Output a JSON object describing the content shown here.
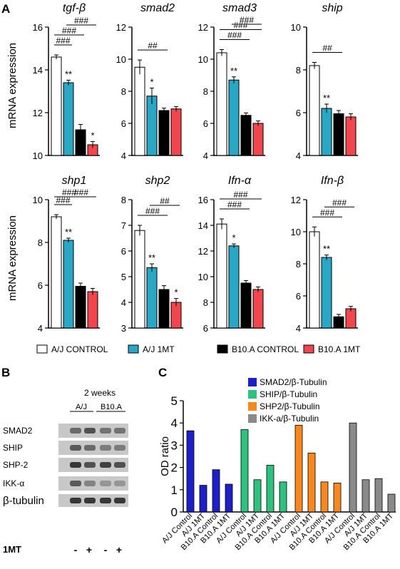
{
  "panels": {
    "A": "A",
    "B": "B",
    "C": "C"
  },
  "panel_a": {
    "ylabel": "mRNA expression",
    "legend": [
      {
        "label": "A/J CONTROL",
        "color": "#ffffff"
      },
      {
        "label": "A/J 1MT",
        "color": "#2aa7c4"
      },
      {
        "label": "B10.A CONTROL",
        "color": "#000000"
      },
      {
        "label": "B10.A 1MT",
        "color": "#f2464e"
      }
    ]
  },
  "panel_b": {
    "time_label": "2 weeks",
    "group_labels": [
      "A/J",
      "B10.A"
    ],
    "row_labels": [
      "SMAD2",
      "SHIP",
      "SHP-2",
      "IKK-α",
      "β-tubulin"
    ],
    "treatment_label": "1MT",
    "treatment_signs": [
      "-",
      "+",
      "-",
      "+"
    ]
  },
  "chart_data": [
    {
      "type": "bar",
      "title": "tgf-β",
      "ylim": [
        10,
        16
      ],
      "yticks": [
        10,
        12,
        14,
        16
      ],
      "categories": [
        "A/J CONTROL",
        "A/J 1MT",
        "B10.A CONTROL",
        "B10.A 1MT"
      ],
      "values": [
        14.6,
        13.4,
        11.2,
        10.5
      ],
      "errors": [
        0.1,
        0.12,
        0.25,
        0.15
      ],
      "bar_labels": [
        "",
        "**",
        "",
        "*"
      ],
      "brackets": [
        {
          "from": 0,
          "to": 1,
          "label": "###"
        },
        {
          "from": 0,
          "to": 2,
          "label": "###"
        },
        {
          "from": 1,
          "to": 3,
          "label": "###"
        }
      ]
    },
    {
      "type": "bar",
      "title": "smad2",
      "ylim": [
        4,
        12
      ],
      "yticks": [
        4,
        6,
        8,
        10,
        12
      ],
      "categories": [
        "A/J CONTROL",
        "A/J 1MT",
        "B10.A CONTROL",
        "B10.A 1MT"
      ],
      "values": [
        9.5,
        7.7,
        6.8,
        6.9
      ],
      "errors": [
        0.45,
        0.5,
        0.15,
        0.15
      ],
      "bar_labels": [
        "",
        "*",
        "",
        ""
      ],
      "brackets": [
        {
          "from": 0,
          "to": 2,
          "label": "##"
        }
      ]
    },
    {
      "type": "bar",
      "title": "smad3",
      "ylim": [
        4,
        12
      ],
      "yticks": [
        4,
        6,
        8,
        10,
        12
      ],
      "categories": [
        "A/J CONTROL",
        "A/J 1MT",
        "B10.A CONTROL",
        "B10.A 1MT"
      ],
      "values": [
        10.4,
        8.7,
        6.5,
        6.0
      ],
      "errors": [
        0.2,
        0.2,
        0.15,
        0.15
      ],
      "bar_labels": [
        "",
        "**",
        "",
        ""
      ],
      "brackets": [
        {
          "from": 0,
          "to": 2,
          "label": "###"
        },
        {
          "from": 0,
          "to": 3,
          "label": "###"
        },
        {
          "from": 1,
          "to": 3,
          "label": "###"
        }
      ]
    },
    {
      "type": "bar",
      "title": "ship",
      "ylim": [
        4,
        10
      ],
      "yticks": [
        4,
        6,
        8,
        10
      ],
      "categories": [
        "A/J CONTROL",
        "A/J 1MT",
        "B10.A CONTROL",
        "B10.A 1MT"
      ],
      "values": [
        8.2,
        6.2,
        5.95,
        5.8
      ],
      "errors": [
        0.15,
        0.2,
        0.15,
        0.15
      ],
      "bar_labels": [
        "",
        "**",
        "",
        ""
      ],
      "brackets": [
        {
          "from": 0,
          "to": 2,
          "label": "##"
        }
      ]
    },
    {
      "type": "bar",
      "title": "shp1",
      "ylim": [
        4,
        10
      ],
      "yticks": [
        4,
        6,
        8,
        10
      ],
      "categories": [
        "A/J CONTROL",
        "A/J 1MT",
        "B10.A CONTROL",
        "B10.A 1MT"
      ],
      "values": [
        9.2,
        8.1,
        5.95,
        5.7
      ],
      "errors": [
        0.1,
        0.1,
        0.15,
        0.15
      ],
      "bar_labels": [
        "",
        "**",
        "",
        ""
      ],
      "brackets": [
        {
          "from": 0,
          "to": 1,
          "label": "###"
        },
        {
          "from": 0,
          "to": 2,
          "label": "###"
        },
        {
          "from": 1,
          "to": 3,
          "label": "###"
        }
      ]
    },
    {
      "type": "bar",
      "title": "shp2",
      "ylim": [
        3,
        8
      ],
      "yticks": [
        3,
        4,
        5,
        6,
        7,
        8
      ],
      "categories": [
        "A/J CONTROL",
        "A/J 1MT",
        "B10.A CONTROL",
        "B10.A 1MT"
      ],
      "values": [
        6.8,
        5.35,
        4.5,
        4.0
      ],
      "errors": [
        0.2,
        0.15,
        0.15,
        0.15
      ],
      "bar_labels": [
        "",
        "**",
        "",
        "*"
      ],
      "brackets": [
        {
          "from": 0,
          "to": 2,
          "label": "###"
        },
        {
          "from": 1,
          "to": 3,
          "label": "##"
        }
      ]
    },
    {
      "type": "bar",
      "title": "Ifn-α",
      "ylim": [
        6,
        16
      ],
      "yticks": [
        6,
        8,
        10,
        12,
        14,
        16
      ],
      "categories": [
        "A/J CONTROL",
        "A/J 1MT",
        "B10.A CONTROL",
        "B10.A 1MT"
      ],
      "values": [
        14.1,
        12.4,
        9.5,
        9.0
      ],
      "errors": [
        0.4,
        0.15,
        0.2,
        0.2
      ],
      "bar_labels": [
        "",
        "*",
        "",
        ""
      ],
      "brackets": [
        {
          "from": 0,
          "to": 2,
          "label": "###"
        },
        {
          "from": 0,
          "to": 3,
          "label": "###"
        }
      ]
    },
    {
      "type": "bar",
      "title": "Ifn-β",
      "ylim": [
        4,
        12
      ],
      "yticks": [
        4,
        6,
        8,
        10,
        12
      ],
      "categories": [
        "A/J CONTROL",
        "A/J 1MT",
        "B10.A CONTROL",
        "B10.A 1MT"
      ],
      "values": [
        10.0,
        8.4,
        4.7,
        5.2
      ],
      "errors": [
        0.3,
        0.15,
        0.15,
        0.15
      ],
      "bar_labels": [
        "",
        "**",
        "",
        ""
      ],
      "brackets": [
        {
          "from": 0,
          "to": 2,
          "label": "###"
        },
        {
          "from": 1,
          "to": 3,
          "label": "###"
        }
      ]
    },
    {
      "type": "bar",
      "ylabel": "OD ratio",
      "ylim": [
        0,
        5
      ],
      "yticks": [
        0,
        1,
        2,
        3,
        4,
        5
      ],
      "categories": [
        "A/J Control",
        "A/J 1MT",
        "B10.A Control",
        "B10.A 1MT"
      ],
      "series": [
        {
          "name": "SMAD2/β-Tubulin",
          "color": "#1f1fc8",
          "values": [
            3.65,
            1.2,
            1.9,
            1.25
          ]
        },
        {
          "name": "SHIP/β-Tubulin",
          "color": "#2ec27e",
          "values": [
            3.7,
            1.45,
            2.1,
            1.35
          ]
        },
        {
          "name": "SHP2/β-Tubulin",
          "color": "#f7881f",
          "values": [
            3.9,
            2.65,
            1.35,
            1.3
          ]
        },
        {
          "name": "IKK-a/β-Tubulin",
          "color": "#8a8a8a",
          "values": [
            4.0,
            1.45,
            1.5,
            0.8
          ]
        }
      ]
    }
  ]
}
